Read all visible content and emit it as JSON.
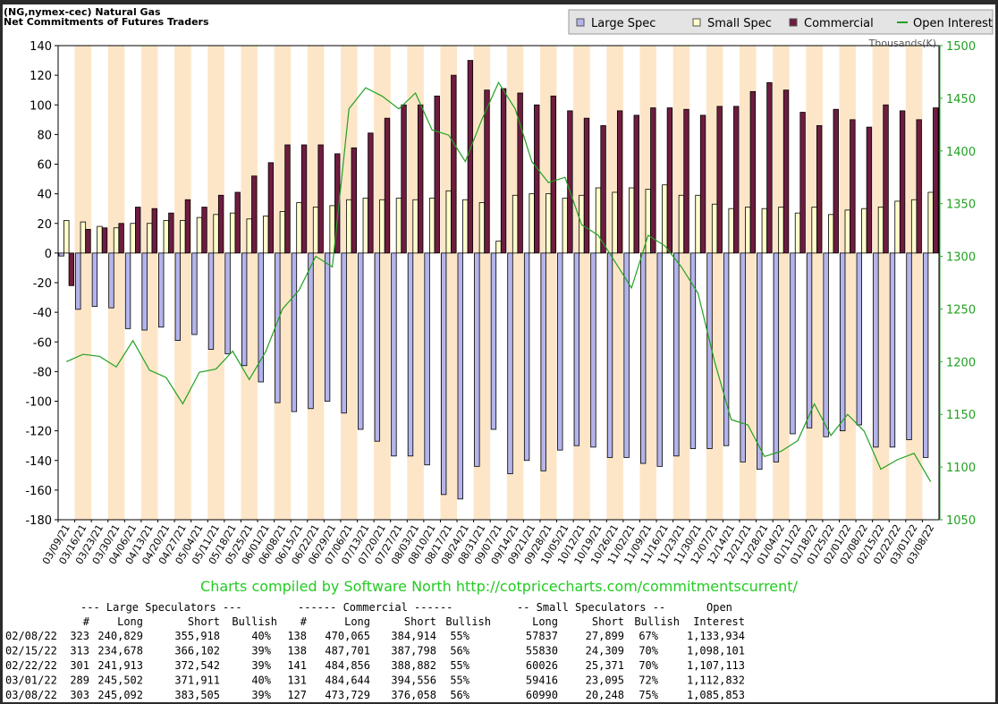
{
  "chart_data": {
    "type": "bar",
    "title": "(NG,nymex-cec) Natural Gas",
    "subtitle": "Net Commitments of Futures Traders",
    "y2_label": "Thousands(K)",
    "credit": "Charts compiled by Software North  http://cotpricecharts.com/commitmentscurrent/",
    "categories": [
      "03/09/21",
      "03/16/21",
      "03/23/21",
      "03/30/21",
      "04/06/21",
      "04/13/21",
      "04/20/21",
      "04/27/21",
      "05/04/21",
      "05/11/21",
      "05/18/21",
      "05/25/21",
      "06/01/21",
      "06/08/21",
      "06/15/21",
      "06/22/21",
      "06/29/21",
      "07/06/21",
      "07/13/21",
      "07/20/21",
      "07/27/21",
      "08/03/21",
      "08/10/21",
      "08/17/21",
      "08/24/21",
      "08/31/21",
      "09/07/21",
      "09/14/21",
      "09/21/21",
      "09/28/21",
      "10/05/21",
      "10/12/21",
      "10/19/21",
      "10/26/21",
      "11/02/21",
      "11/09/21",
      "11/16/21",
      "11/23/21",
      "11/30/21",
      "12/07/21",
      "12/14/21",
      "12/21/21",
      "12/28/21",
      "01/04/22",
      "01/11/22",
      "01/18/22",
      "01/25/22",
      "02/01/22",
      "02/08/22",
      "02/15/22",
      "02/22/22",
      "03/01/22",
      "03/08/22"
    ],
    "series": [
      {
        "name": "Large Spec",
        "color": "#b4b4ec",
        "values": [
          -2,
          -38,
          -36,
          -37,
          -51,
          -52,
          -50,
          -59,
          -55,
          -65,
          -68,
          -76,
          -87,
          -101,
          -107,
          -105,
          -100,
          -108,
          -119,
          -127,
          -137,
          -137,
          -143,
          -163,
          -166,
          -144,
          -119,
          -149,
          -140,
          -147,
          -133,
          -130,
          -131,
          -138,
          -138,
          -142,
          -144,
          -137,
          -132,
          -132,
          -130,
          -141,
          -146,
          -141,
          -122,
          -118,
          -124,
          -120,
          -116,
          -131,
          -131,
          -126,
          -138
        ]
      },
      {
        "name": "Small Spec",
        "color": "#ffffcc",
        "values": [
          22,
          21,
          18,
          17,
          20,
          20,
          22,
          22,
          24,
          26,
          27,
          23,
          25,
          28,
          34,
          31,
          32,
          36,
          37,
          36,
          37,
          36,
          37,
          42,
          36,
          34,
          8,
          39,
          40,
          40,
          37,
          39,
          44,
          41,
          44,
          43,
          46,
          39,
          39,
          33,
          30,
          31,
          30,
          31,
          27,
          31,
          26,
          29,
          30,
          31,
          35,
          36,
          41
        ]
      },
      {
        "name": "Commercial",
        "color": "#6e1c40",
        "values": [
          -22,
          16,
          17,
          20,
          31,
          30,
          27,
          36,
          31,
          39,
          41,
          52,
          61,
          73,
          73,
          73,
          67,
          71,
          81,
          91,
          100,
          100,
          106,
          120,
          130,
          110,
          111,
          108,
          100,
          106,
          96,
          91,
          86,
          96,
          93,
          98,
          98,
          97,
          93,
          99,
          99,
          109,
          115,
          110,
          95,
          86,
          97,
          90,
          85,
          100,
          96,
          90,
          98
        ]
      },
      {
        "name": "Open Interest",
        "color": "#22a022",
        "axis": "y2",
        "values": [
          1200,
          1207,
          1205,
          1195,
          1220,
          1192,
          1185,
          1160,
          1190,
          1193,
          1210,
          1183,
          1210,
          1250,
          1268,
          1300,
          1290,
          1440,
          1460,
          1452,
          1440,
          1455,
          1420,
          1415,
          1390,
          1430,
          1465,
          1440,
          1390,
          1370,
          1375,
          1330,
          1320,
          1295,
          1270,
          1320,
          1310,
          1290,
          1265,
          1200,
          1145,
          1140,
          1110,
          1115,
          1125,
          1160,
          1130,
          1150,
          1134,
          1098,
          1107,
          1113,
          1086
        ]
      }
    ],
    "ylim": [
      -180,
      140
    ],
    "yticks": [
      -180,
      -160,
      -140,
      -120,
      -100,
      -80,
      -60,
      -40,
      -20,
      0,
      20,
      40,
      60,
      80,
      100,
      120,
      140
    ],
    "y2lim": [
      1050,
      1500
    ],
    "y2ticks": [
      1050,
      1100,
      1150,
      1200,
      1250,
      1300,
      1350,
      1400,
      1450,
      1500
    ],
    "grid": false,
    "legend": "top-right"
  },
  "table": {
    "groups": [
      "--- Large Speculators ---",
      "------ Commercial ------",
      "-- Small Speculators --",
      "Open"
    ],
    "columns": [
      "#",
      "Long",
      "Short",
      "Bullish",
      "#",
      "Long",
      "Short",
      "Bullish",
      "Long",
      "Short",
      "Bullish",
      "Interest"
    ],
    "rows": [
      [
        "02/08/22",
        "323",
        "240,829",
        "355,918",
        "40%",
        "138",
        "470,065",
        "384,914",
        "55%",
        "57837",
        "27,899",
        "67%",
        "1,133,934"
      ],
      [
        "02/15/22",
        "313",
        "234,678",
        "366,102",
        "39%",
        "138",
        "487,701",
        "387,798",
        "56%",
        "55830",
        "24,309",
        "70%",
        "1,098,101"
      ],
      [
        "02/22/22",
        "301",
        "241,913",
        "372,542",
        "39%",
        "141",
        "484,856",
        "388,882",
        "55%",
        "60026",
        "25,371",
        "70%",
        "1,107,113"
      ],
      [
        "03/01/22",
        "289",
        "245,502",
        "371,911",
        "40%",
        "131",
        "484,644",
        "394,556",
        "55%",
        "59416",
        "23,095",
        "72%",
        "1,112,832"
      ],
      [
        "03/08/22",
        "303",
        "245,092",
        "383,505",
        "39%",
        "127",
        "473,729",
        "376,058",
        "56%",
        "60990",
        "20,248",
        "75%",
        "1,085,853"
      ]
    ]
  }
}
